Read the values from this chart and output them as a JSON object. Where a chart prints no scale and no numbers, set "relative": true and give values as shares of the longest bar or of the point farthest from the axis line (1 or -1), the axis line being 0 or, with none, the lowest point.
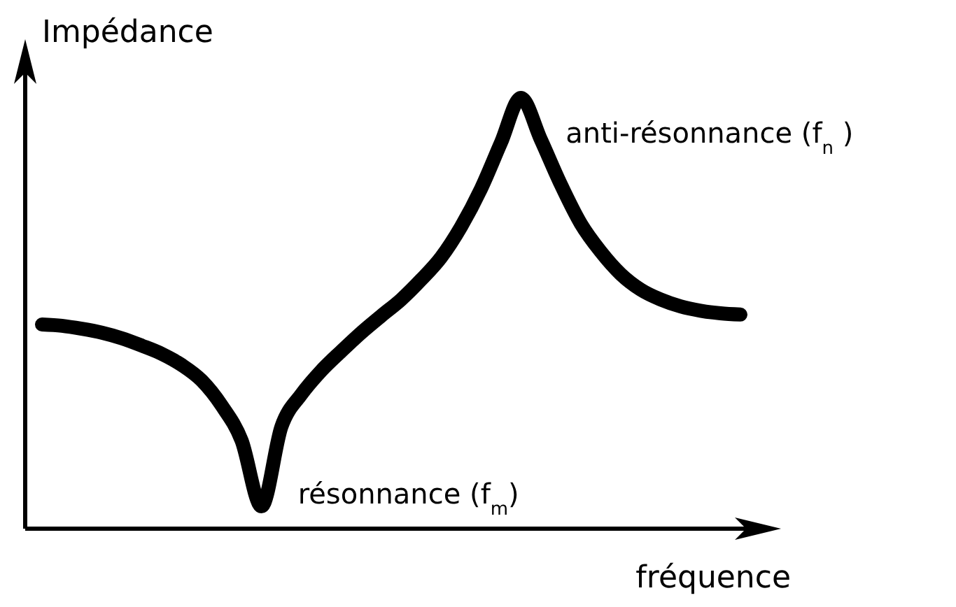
{
  "chart_data": {
    "type": "line",
    "relative": true,
    "ylabel": "Impédance",
    "xlabel": "fréquence",
    "categories": [
      null,
      null,
      null,
      null,
      null,
      null,
      null,
      null,
      null,
      null,
      null,
      null,
      null,
      null,
      null,
      null,
      null,
      null,
      null,
      null,
      null,
      null,
      null,
      null,
      null,
      null,
      null,
      null,
      null,
      null,
      null,
      null,
      null,
      null,
      null,
      null
    ],
    "series": [
      {
        "color": "#000000",
        "values": [
          0.474,
          0.471,
          0.464,
          0.455,
          0.442,
          0.425,
          0.406,
          0.38,
          0.344,
          0.286,
          0.205,
          0.052,
          0.237,
          0.312,
          0.367,
          0.412,
          0.455,
          0.494,
          0.532,
          0.578,
          0.63,
          0.701,
          0.789,
          0.896,
          1,
          0.903,
          0.799,
          0.708,
          0.643,
          0.591,
          0.555,
          0.532,
          0.516,
          0.506,
          0.5,
          0.497
        ]
      }
    ],
    "annotations": [
      "résonnance (f$_{m}$)",
      "anti-résonnance (f$_{n}$ )"
    ]
  }
}
